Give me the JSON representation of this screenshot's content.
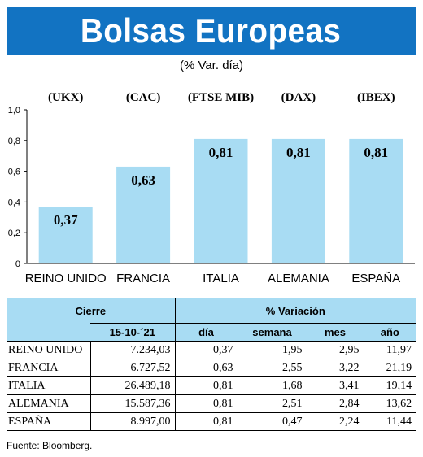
{
  "header": {
    "title": "Bolsas Europeas",
    "subtitle": "(% Var. día)"
  },
  "colors": {
    "banner": "#1273c2",
    "bar": "#a8dcf3",
    "table_header": "#a8dcf3"
  },
  "chart_data": {
    "type": "bar",
    "indices": [
      "(UKX)",
      "(CAC)",
      "(FTSE MIB)",
      "(DAX)",
      "(IBEX)"
    ],
    "categories": [
      "REINO UNIDO",
      "FRANCIA",
      "ITALIA",
      "ALEMANIA",
      "ESPAÑA"
    ],
    "values": [
      0.37,
      0.63,
      0.81,
      0.81,
      0.81
    ],
    "value_labels": [
      "0,37",
      "0,63",
      "0,81",
      "0,81",
      "0,81"
    ],
    "ylim": [
      0,
      1.0
    ],
    "yticks": [
      0,
      0.2,
      0.4,
      0.6,
      0.8,
      1.0
    ],
    "ytick_labels": [
      "0",
      "0,2",
      "0,4",
      "0,6",
      "0,8",
      "1,0"
    ],
    "grid": false
  },
  "table": {
    "group_headers": {
      "cierre": "Cierre",
      "variacion": "% Variación"
    },
    "columns": {
      "date": "15-10-´21",
      "dia": "día",
      "semana": "semana",
      "mes": "mes",
      "ano": "año"
    },
    "rows": [
      {
        "country": "REINO UNIDO",
        "cierre": "7.234,03",
        "dia": "0,37",
        "semana": "1,95",
        "mes": "2,95",
        "ano": "11,97"
      },
      {
        "country": "FRANCIA",
        "cierre": "6.727,52",
        "dia": "0,63",
        "semana": "2,55",
        "mes": "3,22",
        "ano": "21,19"
      },
      {
        "country": "ITALIA",
        "cierre": "26.489,18",
        "dia": "0,81",
        "semana": "1,68",
        "mes": "3,41",
        "ano": "19,14"
      },
      {
        "country": "ALEMANIA",
        "cierre": "15.587,36",
        "dia": "0,81",
        "semana": "2,51",
        "mes": "2,84",
        "ano": "13,62"
      },
      {
        "country": "ESPAÑA",
        "cierre": "8.997,00",
        "dia": "0,81",
        "semana": "0,47",
        "mes": "2,24",
        "ano": "11,44"
      }
    ]
  },
  "source": "Fuente: Bloomberg."
}
